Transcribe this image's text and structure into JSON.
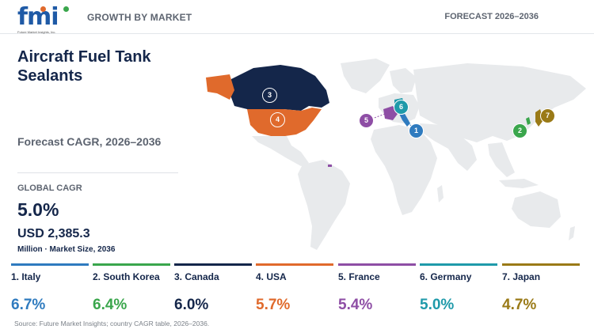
{
  "header": {
    "logo_text": "fmi",
    "logo_subtext": "Future Market Insights, Inc.",
    "left_label": "GROWTH BY MARKET",
    "right_label": "FORECAST 2026–2036"
  },
  "summary": {
    "title": "Aircraft Fuel Tank Sealants",
    "cagr_period_label": "Forecast CAGR, 2026–2036",
    "global_cagr_label": "GLOBAL CAGR",
    "global_cagr_value": "5.0%",
    "market_size_value": "USD 2,385.3",
    "market_size_label": "Million · Market Size, 2036"
  },
  "countries": [
    {
      "rank": "1",
      "name": "1. Italy",
      "cagr": "6.7%",
      "color": "#2f7bbf"
    },
    {
      "rank": "2",
      "name": "2. South Korea",
      "cagr": "6.4%",
      "color": "#3aa64c"
    },
    {
      "rank": "3",
      "name": "3. Canada",
      "cagr": "6.0%",
      "color": "#14264a"
    },
    {
      "rank": "4",
      "name": "4. USA",
      "cagr": "5.7%",
      "color": "#e06a2c"
    },
    {
      "rank": "5",
      "name": "5. France",
      "cagr": "5.4%",
      "color": "#8e4ea5"
    },
    {
      "rank": "6",
      "name": "6. Germany",
      "cagr": "5.0%",
      "color": "#1f9aaa"
    },
    {
      "rank": "7",
      "name": "7. Japan",
      "cagr": "4.7%",
      "color": "#9a7a17"
    }
  ],
  "colors": {
    "map_base": "#e8eaec",
    "title_navy": "#14264a"
  },
  "source": "Source: Future Market Insights; country CAGR table, 2026–2036."
}
